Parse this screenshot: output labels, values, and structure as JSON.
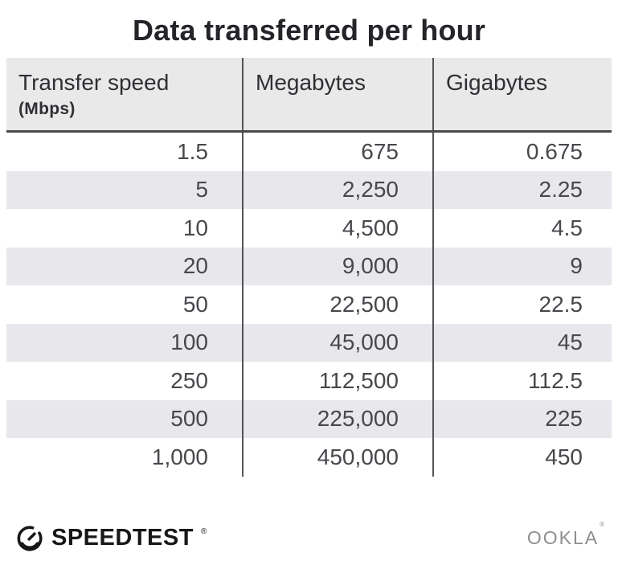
{
  "title": "Data transferred per hour",
  "table": {
    "columns": [
      {
        "label": "Transfer speed",
        "sublabel": "(Mbps)"
      },
      {
        "label": "Megabytes"
      },
      {
        "label": "Gigabytes"
      }
    ],
    "rows": [
      [
        "1.5",
        "675",
        "0.675"
      ],
      [
        "5",
        "2,250",
        "2.25"
      ],
      [
        "10",
        "4,500",
        "4.5"
      ],
      [
        "20",
        "9,000",
        "9"
      ],
      [
        "50",
        "22,500",
        "22.5"
      ],
      [
        "100",
        "45,000",
        "45"
      ],
      [
        "250",
        "112,500",
        "112.5"
      ],
      [
        "500",
        "225,000",
        "225"
      ],
      [
        "1,000",
        "450,000",
        "450"
      ]
    ]
  },
  "footer": {
    "speedtest": "SPEEDTEST",
    "ookla": "OOKLA",
    "registered_mark": "®"
  },
  "colors": {
    "header_bg": "#eae9ea",
    "stripe_bg": "#e8e7ec",
    "divider": "#545457",
    "header_rule": "#4a4a4d",
    "title_text": "#242429",
    "header_text": "#2f2f34",
    "cell_text": "#47474c",
    "ookla_gray": "#8e8e90",
    "logo_dark": "#17171a"
  },
  "chart_data": {
    "type": "table",
    "title": "Data transferred per hour",
    "columns": [
      "Transfer speed (Mbps)",
      "Megabytes",
      "Gigabytes"
    ],
    "rows": [
      [
        1.5,
        675,
        0.675
      ],
      [
        5,
        2250,
        2.25
      ],
      [
        10,
        4500,
        4.5
      ],
      [
        20,
        9000,
        9
      ],
      [
        50,
        22500,
        22.5
      ],
      [
        100,
        45000,
        45
      ],
      [
        250,
        112500,
        112.5
      ],
      [
        500,
        225000,
        225
      ],
      [
        1000,
        450000,
        450
      ]
    ]
  }
}
